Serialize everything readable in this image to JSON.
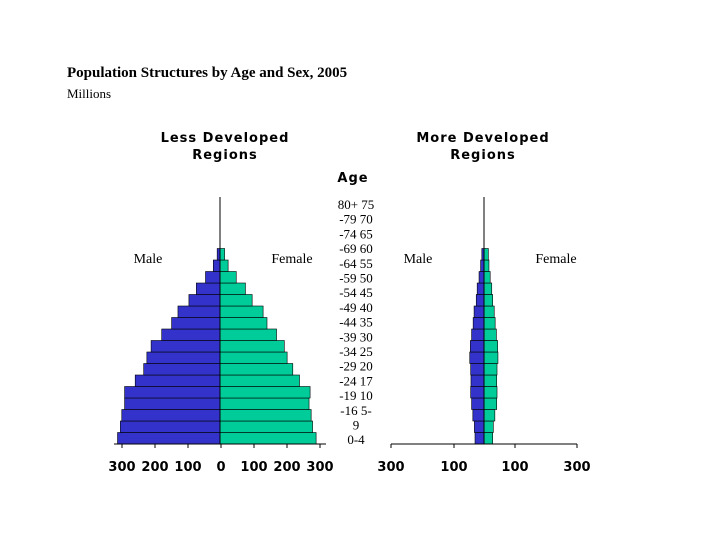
{
  "title": "Population Structures by Age and Sex, 2005",
  "subtitle": "Millions",
  "age_header": "Age",
  "age_labels": [
    "80+ 75",
    "-79 70",
    "-74 65",
    "-69 60",
    "-64 55",
    "-59 50",
    "-54 45",
    "-49 40",
    "-44 35",
    "-39 30",
    "-34 25",
    "-29 20",
    "-24 17",
    "-19 10",
    "-16 5-",
    "9",
    "0-4"
  ],
  "colors": {
    "male": "#3333cc",
    "female": "#00cc99",
    "outline": "#000000"
  },
  "chart_data": [
    {
      "type": "bar",
      "orientation": "horizontal",
      "title_lines": [
        "Less Developed",
        "Regions"
      ],
      "left_label": "Male",
      "right_label": "Female",
      "xlim": [
        -300,
        300
      ],
      "ticks": [
        "300",
        "200",
        "100",
        "0",
        "100",
        "200",
        "300"
      ],
      "categories": [
        "0-4",
        "5-9",
        "10-14",
        "15-19",
        "20-24",
        "25-29",
        "30-34",
        "35-39",
        "40-44",
        "45-49",
        "50-54",
        "55-59",
        "60-64",
        "65-69",
        "70-74",
        "75-79",
        "80+"
      ],
      "series": [
        {
          "name": "Male",
          "values": [
            290,
            282,
            278,
            270,
            270,
            240,
            216,
            207,
            195,
            165,
            137,
            119,
            88,
            67,
            41,
            19,
            8
          ]
        },
        {
          "name": "Female",
          "values": [
            272,
            262,
            258,
            252,
            255,
            225,
            206,
            190,
            182,
            160,
            133,
            122,
            91,
            72,
            46,
            23,
            13
          ]
        }
      ]
    },
    {
      "type": "bar",
      "orientation": "horizontal",
      "title_lines": [
        "More Developed",
        "Regions"
      ],
      "left_label": "Male",
      "right_label": "Female",
      "xlim": [
        -300,
        300
      ],
      "ticks": [
        "300",
        "100",
        "100",
        "300"
      ],
      "categories": [
        "0-4",
        "5-9",
        "10-14",
        "15-19",
        "20-24",
        "25-29",
        "30-34",
        "35-39",
        "40-44",
        "45-49",
        "50-54",
        "55-59",
        "60-64",
        "65-69",
        "70-74",
        "75-79",
        "80+"
      ],
      "series": [
        {
          "name": "Male",
          "values": [
            29,
            31,
            36,
            40,
            43,
            42,
            43,
            46,
            44,
            40,
            35,
            32,
            25,
            22,
            16,
            11,
            7
          ]
        },
        {
          "name": "Female",
          "values": [
            28,
            30,
            35,
            41,
            42,
            41,
            42,
            45,
            44,
            40,
            36,
            33,
            28,
            25,
            20,
            16,
            14
          ]
        }
      ]
    }
  ]
}
